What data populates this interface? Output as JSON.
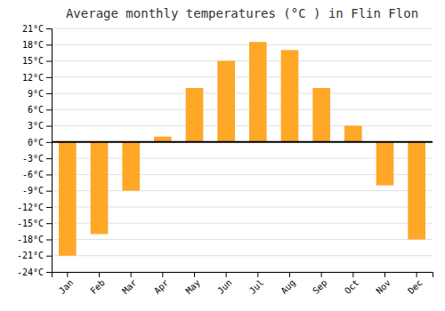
{
  "chart_data": {
    "type": "bar",
    "title": "Average monthly temperatures (°C ) in Flin Flon",
    "categories": [
      "Jan",
      "Feb",
      "Mar",
      "Apr",
      "May",
      "Jun",
      "Jul",
      "Aug",
      "Sep",
      "Oct",
      "Nov",
      "Dec"
    ],
    "values": [
      -21,
      -17,
      -9,
      1,
      10,
      15,
      18.5,
      17,
      10,
      3,
      -8,
      -18
    ],
    "color": "#FFA726",
    "ylim": [
      -24,
      21
    ],
    "yticks": [
      {
        "value": -24,
        "label": "-24°C"
      },
      {
        "value": -21,
        "label": "-21°C"
      },
      {
        "value": -18,
        "label": "-18°C"
      },
      {
        "value": -15,
        "label": "-15°C"
      },
      {
        "value": -12,
        "label": "-12°C"
      },
      {
        "value": -9,
        "label": "-9°C"
      },
      {
        "value": -6,
        "label": "-6°C"
      },
      {
        "value": -3,
        "label": "-3°C"
      },
      {
        "value": 0,
        "label": "0°C"
      },
      {
        "value": 3,
        "label": "3°C"
      },
      {
        "value": 6,
        "label": "6°C"
      },
      {
        "value": 9,
        "label": "9°C"
      },
      {
        "value": 12,
        "label": "12°C"
      },
      {
        "value": 15,
        "label": "15°C"
      },
      {
        "value": 18,
        "label": "18°C"
      },
      {
        "value": 21,
        "label": "21°C"
      }
    ],
    "grid": true
  }
}
